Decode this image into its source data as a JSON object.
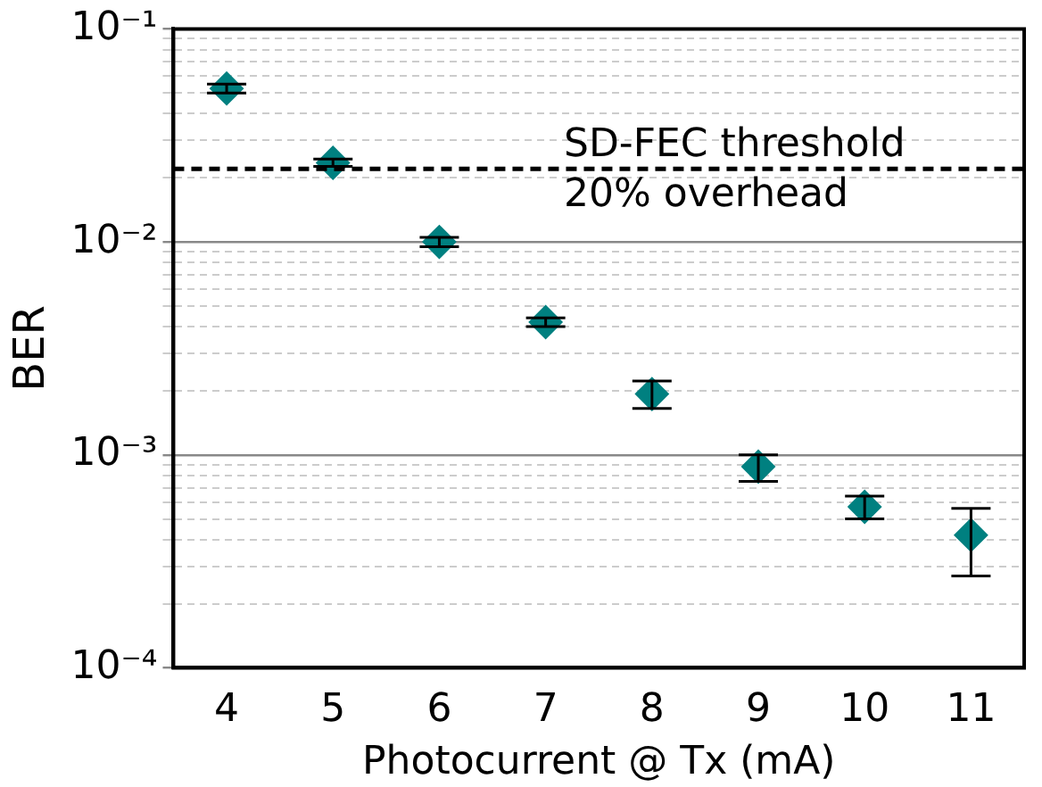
{
  "chart_data": {
    "type": "scatter",
    "xlabel": "Photocurrent @ Tx (mA)",
    "ylabel": "BER",
    "log": "y",
    "marker": "diamond",
    "grid": "y",
    "legend": false,
    "x": [
      4,
      5,
      6,
      7,
      8,
      9,
      10,
      11
    ],
    "series": [
      {
        "color": "#008080",
        "values": [
          0.0525,
          0.0235,
          0.01,
          0.0042,
          0.00193,
          0.00088,
          0.00057,
          0.00042
        ],
        "errors": [
          [
            0.05,
            0.055
          ],
          [
            0.0226,
            0.0245
          ],
          [
            0.0095,
            0.0105
          ],
          [
            0.004,
            0.0044
          ],
          [
            0.00165,
            0.00222
          ],
          [
            0.00075,
            0.001
          ],
          [
            0.0005,
            0.00064
          ],
          [
            0.00027,
            0.00056
          ]
        ]
      }
    ],
    "xlim": [
      3.5,
      11.5
    ],
    "xticks": [
      4,
      5,
      6,
      7,
      8,
      9,
      10,
      11
    ],
    "ylim": [
      0.0001,
      0.1
    ],
    "yticks": [
      {
        "value": 0.0001,
        "label": "10⁻⁴"
      },
      {
        "value": 0.0002,
        "label": null
      },
      {
        "value": 0.0003,
        "label": null
      },
      {
        "value": 0.0004,
        "label": null
      },
      {
        "value": 0.0005,
        "label": null
      },
      {
        "value": 0.0006,
        "label": null
      },
      {
        "value": 0.0007,
        "label": null
      },
      {
        "value": 0.0008,
        "label": null
      },
      {
        "value": 0.0009,
        "label": null
      },
      {
        "value": 0.001,
        "label": "10⁻³"
      },
      {
        "value": 0.002,
        "label": null
      },
      {
        "value": 0.003,
        "label": null
      },
      {
        "value": 0.004,
        "label": null
      },
      {
        "value": 0.005,
        "label": null
      },
      {
        "value": 0.006,
        "label": null
      },
      {
        "value": 0.007,
        "label": null
      },
      {
        "value": 0.008,
        "label": null
      },
      {
        "value": 0.009,
        "label": null
      },
      {
        "value": 0.01,
        "label": "10⁻²"
      },
      {
        "value": 0.02,
        "label": null
      },
      {
        "value": 0.03,
        "label": null
      },
      {
        "value": 0.04,
        "label": null
      },
      {
        "value": 0.05,
        "label": null
      },
      {
        "value": 0.06,
        "label": null
      },
      {
        "value": 0.07,
        "label": null
      },
      {
        "value": 0.08,
        "label": null
      },
      {
        "value": 0.09,
        "label": null
      },
      {
        "value": 0.1,
        "label": "10⁻¹"
      }
    ],
    "ref_lines": [
      {
        "axis": "y",
        "value": 0.022,
        "label": "SD-FEC threshold",
        "line_style": "dashed",
        "color": "#000000"
      }
    ],
    "annotations": [
      "20% overhead"
    ]
  }
}
